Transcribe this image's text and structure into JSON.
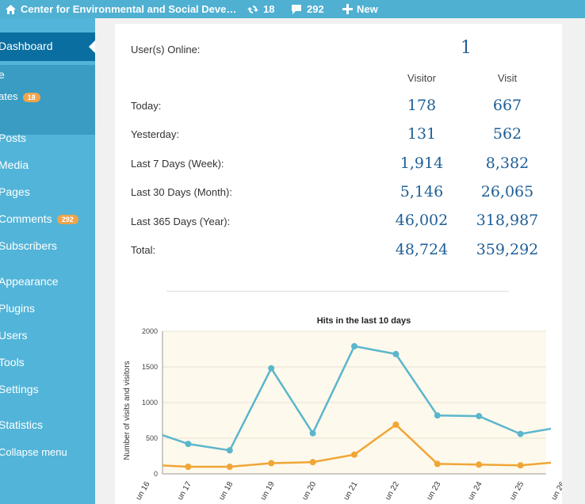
{
  "adminbar": {
    "site_title": "Center for Environmental and Social Deve…",
    "updates_count": "18",
    "comments_count": "292",
    "new_label": "New"
  },
  "sidebar": {
    "dashboard_label": "Dashboard",
    "home_label": "e",
    "updates_label": "ates",
    "updates_badge": "18",
    "items": [
      {
        "label": "Posts"
      },
      {
        "label": "Media"
      },
      {
        "label": "Pages"
      },
      {
        "label": "Comments",
        "badge": "292"
      },
      {
        "label": "Subscribers"
      },
      {
        "label": "Appearance"
      },
      {
        "label": "Plugins"
      },
      {
        "label": "Users"
      },
      {
        "label": "Tools"
      },
      {
        "label": "Settings"
      },
      {
        "label": "Statistics"
      },
      {
        "label": "Collapse menu"
      }
    ]
  },
  "stats": {
    "online_label": "User(s) Online:",
    "online_value": "1",
    "col_visitor": "Visitor",
    "col_visit": "Visit",
    "rows": [
      {
        "label": "Today:",
        "visitor": "178",
        "visit": "667"
      },
      {
        "label": "Yesterday:",
        "visitor": "131",
        "visit": "562"
      },
      {
        "label": "Last 7 Days (Week):",
        "visitor": "1,914",
        "visit": "8,382"
      },
      {
        "label": "Last 30 Days (Month):",
        "visitor": "5,146",
        "visit": "26,065"
      },
      {
        "label": "Last 365 Days (Year):",
        "visitor": "46,002",
        "visit": "318,987"
      },
      {
        "label": "Total:",
        "visitor": "48,724",
        "visit": "359,292"
      }
    ]
  },
  "chart_data": {
    "type": "line",
    "title": "Hits in the last 10 days",
    "ylabel": "Number of visits and visitors",
    "xlabel": "",
    "ylim": [
      0,
      2000
    ],
    "yticks": [
      "0",
      "500",
      "1000",
      "1500",
      "2000"
    ],
    "categories": [
      "un 16",
      "un 17",
      "un 18",
      "un 19",
      "un 20",
      "un 21",
      "un 22",
      "un 23",
      "un 24",
      "un 25",
      "un 26"
    ],
    "series": [
      {
        "color": "#5bb6cc",
        "values": [
          620,
          420,
          330,
          1480,
          570,
          1790,
          1680,
          820,
          810,
          560,
          660
        ]
      },
      {
        "color": "#f0a636",
        "values": [
          130,
          100,
          100,
          150,
          165,
          270,
          690,
          140,
          130,
          120,
          170
        ]
      }
    ],
    "plot_background": "#fdf9ec",
    "grid": true
  }
}
